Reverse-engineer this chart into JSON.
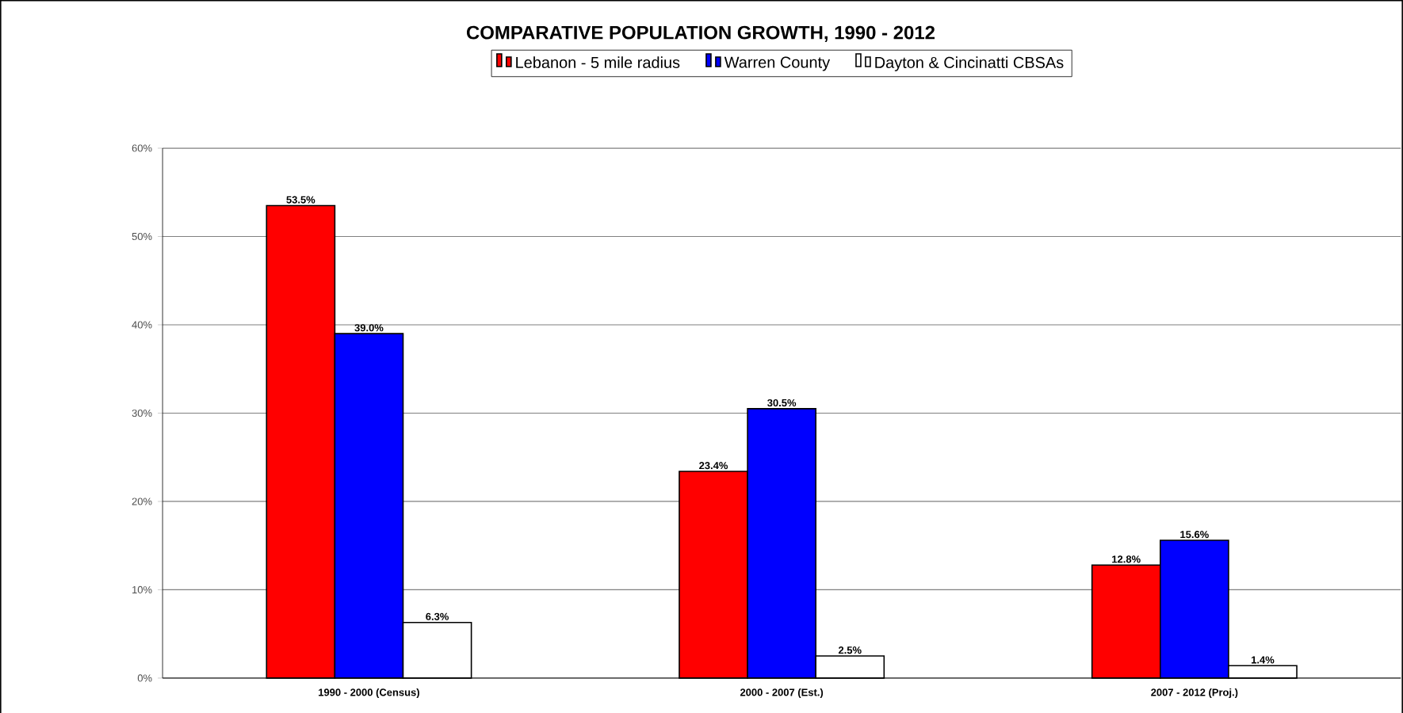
{
  "chart_data": {
    "type": "bar",
    "title": "COMPARATIVE POPULATION GROWTH, 1990 - 2012",
    "categories": [
      "1990 - 2000 (Census)",
      "2000 - 2007 (Est.)",
      "2007 - 2012 (Proj.)"
    ],
    "series": [
      {
        "name": "Lebanon - 5 mile radius",
        "color": "#ff0000",
        "values": [
          53.5,
          23.4,
          12.8
        ],
        "value_labels": [
          "53.5%",
          "23.4%",
          "12.8%"
        ]
      },
      {
        "name": "Warren County",
        "color": "#0000ff",
        "values": [
          39.0,
          30.5,
          15.6
        ],
        "value_labels": [
          "39.0%",
          "30.5%",
          "15.6%"
        ]
      },
      {
        "name": "Dayton & Cincinatti CBSAs",
        "color": "#ffffff",
        "values": [
          6.3,
          2.5,
          1.4
        ],
        "value_labels": [
          "6.3%",
          "2.5%",
          "1.4%"
        ]
      }
    ],
    "ylim": [
      0,
      60
    ],
    "yticks": [
      {
        "value": 0,
        "label": "0%"
      },
      {
        "value": 10,
        "label": "10%"
      },
      {
        "value": 20,
        "label": "20%"
      },
      {
        "value": 30,
        "label": "30%"
      },
      {
        "value": 40,
        "label": "40%"
      },
      {
        "value": 50,
        "label": "50%"
      },
      {
        "value": 60,
        "label": "60%"
      }
    ],
    "grid": "y",
    "legend": "top"
  }
}
